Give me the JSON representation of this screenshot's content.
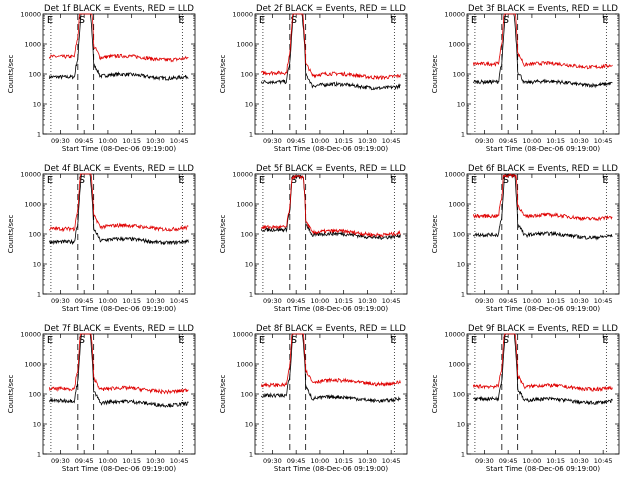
{
  "chart_data": [
    {
      "type": "line",
      "title": "Det 1f BLACK = Events, RED = LLD",
      "xlabel": "Start Time (08-Dec-06 09:19:00)",
      "ylabel": "Counts/sec",
      "yscale": "log",
      "ylim": [
        1,
        10000
      ],
      "xticks": [
        "09:30",
        "09:45",
        "10:00",
        "10:15",
        "10:30",
        "10:45"
      ],
      "markers": [
        "E",
        "S",
        "E"
      ],
      "flare_peak": 12000,
      "series": [
        {
          "name": "Events",
          "color": "#000000",
          "level": 85,
          "pre": 80
        },
        {
          "name": "LLD",
          "color": "#e00000",
          "level": 350,
          "pre": 380
        }
      ]
    },
    {
      "type": "line",
      "title": "Det 2f BLACK = Events, RED = LLD",
      "xlabel": "Start Time (08-Dec-06 09:19:00)",
      "ylabel": "Counts/sec",
      "yscale": "log",
      "ylim": [
        1,
        10000
      ],
      "xticks": [
        "09:30",
        "09:45",
        "10:00",
        "10:15",
        "10:30",
        "10:45"
      ],
      "markers": [
        "E",
        "S",
        "E"
      ],
      "flare_peak": 12000,
      "series": [
        {
          "name": "Events",
          "color": "#000000",
          "level": 40,
          "pre": 55
        },
        {
          "name": "LLD",
          "color": "#e00000",
          "level": 90,
          "pre": 110
        }
      ]
    },
    {
      "type": "line",
      "title": "Det 3f BLACK = Events, RED = LLD",
      "xlabel": "Start Time (08-Dec-06 09:19:00)",
      "ylabel": "Counts/sec",
      "yscale": "log",
      "ylim": [
        1,
        10000
      ],
      "xticks": [
        "09:30",
        "09:45",
        "10:00",
        "10:15",
        "10:30",
        "10:45"
      ],
      "markers": [
        "E",
        "S",
        "E"
      ],
      "flare_peak": 12000,
      "series": [
        {
          "name": "Events",
          "color": "#000000",
          "level": 50,
          "pre": 55
        },
        {
          "name": "LLD",
          "color": "#e00000",
          "level": 200,
          "pre": 220
        }
      ]
    },
    {
      "type": "line",
      "title": "Det 4f BLACK = Events, RED = LLD",
      "xlabel": "Start Time (08-Dec-06 09:19:00)",
      "ylabel": "Counts/sec",
      "yscale": "log",
      "ylim": [
        1,
        10000
      ],
      "xticks": [
        "09:30",
        "09:45",
        "10:00",
        "10:15",
        "10:30",
        "10:45"
      ],
      "markers": [
        "E",
        "S",
        "E"
      ],
      "flare_peak": 12000,
      "series": [
        {
          "name": "Events",
          "color": "#000000",
          "level": 60,
          "pre": 55
        },
        {
          "name": "LLD",
          "color": "#e00000",
          "level": 170,
          "pre": 150
        }
      ]
    },
    {
      "type": "line",
      "title": "Det 5f BLACK = Events, RED = LLD",
      "xlabel": "Start Time (08-Dec-06 09:19:00)",
      "ylabel": "Counts/sec",
      "yscale": "log",
      "ylim": [
        1,
        10000
      ],
      "xticks": [
        "09:30",
        "09:45",
        "10:00",
        "10:15",
        "10:30",
        "10:45"
      ],
      "markers": [
        "E",
        "S",
        "E"
      ],
      "flare_peak": 8000,
      "series": [
        {
          "name": "Events",
          "color": "#000000",
          "level": 90,
          "pre": 140
        },
        {
          "name": "LLD",
          "color": "#e00000",
          "level": 110,
          "pre": 170
        }
      ]
    },
    {
      "type": "line",
      "title": "Det 6f BLACK = Events, RED = LLD",
      "xlabel": "Start Time (08-Dec-06 09:19:00)",
      "ylabel": "Counts/sec",
      "yscale": "log",
      "ylim": [
        1,
        10000
      ],
      "xticks": [
        "09:30",
        "09:45",
        "10:00",
        "10:15",
        "10:30",
        "10:45"
      ],
      "markers": [
        "E",
        "S",
        "E"
      ],
      "flare_peak": 9000,
      "series": [
        {
          "name": "Events",
          "color": "#000000",
          "level": 90,
          "pre": 95
        },
        {
          "name": "LLD",
          "color": "#e00000",
          "level": 380,
          "pre": 400
        }
      ]
    },
    {
      "type": "line",
      "title": "Det 7f BLACK = Events, RED = LLD",
      "xlabel": "Start Time (08-Dec-06 09:19:00)",
      "ylabel": "Counts/sec",
      "yscale": "log",
      "ylim": [
        1,
        10000
      ],
      "xticks": [
        "09:30",
        "09:45",
        "10:00",
        "10:15",
        "10:30",
        "10:45"
      ],
      "markers": [
        "E",
        "S",
        "E"
      ],
      "flare_peak": 12000,
      "series": [
        {
          "name": "Events",
          "color": "#000000",
          "level": 50,
          "pre": 60
        },
        {
          "name": "LLD",
          "color": "#e00000",
          "level": 140,
          "pre": 150
        }
      ]
    },
    {
      "type": "line",
      "title": "Det 8f BLACK = Events, RED = LLD",
      "xlabel": "Start Time (08-Dec-06 09:19:00)",
      "ylabel": "Counts/sec",
      "yscale": "log",
      "ylim": [
        1,
        10000
      ],
      "xticks": [
        "09:30",
        "09:45",
        "10:00",
        "10:15",
        "10:30",
        "10:45"
      ],
      "markers": [
        "E",
        "S",
        "E"
      ],
      "flare_peak": 12000,
      "series": [
        {
          "name": "Events",
          "color": "#000000",
          "level": 70,
          "pre": 90
        },
        {
          "name": "LLD",
          "color": "#e00000",
          "level": 250,
          "pre": 200
        }
      ]
    },
    {
      "type": "line",
      "title": "Det 9f BLACK = Events, RED = LLD",
      "xlabel": "Start Time (08-Dec-06 09:19:00)",
      "ylabel": "Counts/sec",
      "yscale": "log",
      "ylim": [
        1,
        10000
      ],
      "xticks": [
        "09:30",
        "09:45",
        "10:00",
        "10:15",
        "10:30",
        "10:45"
      ],
      "markers": [
        "E",
        "S",
        "E"
      ],
      "flare_peak": 12000,
      "series": [
        {
          "name": "Events",
          "color": "#000000",
          "level": 60,
          "pre": 70
        },
        {
          "name": "LLD",
          "color": "#e00000",
          "level": 170,
          "pre": 180
        }
      ]
    }
  ]
}
